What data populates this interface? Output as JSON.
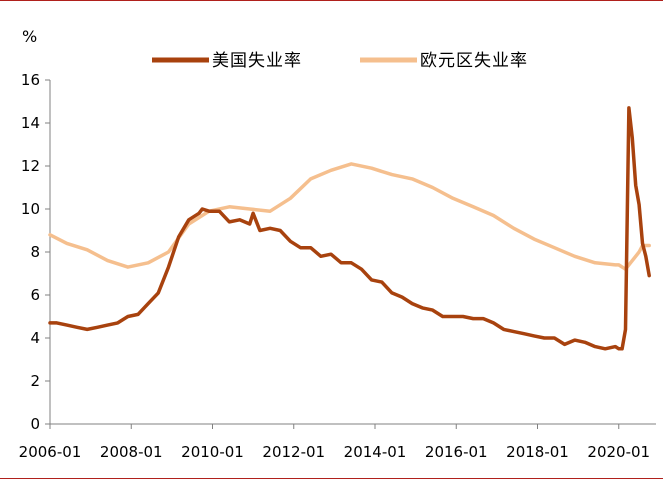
{
  "chart_data": {
    "type": "line",
    "unit_label": "%",
    "ylim": [
      0,
      16
    ],
    "yticks": [
      0,
      2,
      4,
      6,
      8,
      10,
      12,
      14,
      16
    ],
    "xlim": [
      "2006-01",
      "2020-12"
    ],
    "xticks": [
      "2006-01",
      "2008-01",
      "2010-01",
      "2012-01",
      "2014-01",
      "2016-01",
      "2018-01",
      "2020-01"
    ],
    "grid": false,
    "legend_position": "top",
    "series": [
      {
        "name": "美国失业率",
        "color": "#a8420e",
        "points": [
          [
            "2006-01",
            4.7
          ],
          [
            "2006-03",
            4.7
          ],
          [
            "2006-06",
            4.6
          ],
          [
            "2006-09",
            4.5
          ],
          [
            "2006-12",
            4.4
          ],
          [
            "2007-03",
            4.5
          ],
          [
            "2007-06",
            4.6
          ],
          [
            "2007-09",
            4.7
          ],
          [
            "2007-12",
            5.0
          ],
          [
            "2008-03",
            5.1
          ],
          [
            "2008-06",
            5.6
          ],
          [
            "2008-09",
            6.1
          ],
          [
            "2008-12",
            7.3
          ],
          [
            "2009-03",
            8.7
          ],
          [
            "2009-06",
            9.5
          ],
          [
            "2009-09",
            9.8
          ],
          [
            "2009-10",
            10.0
          ],
          [
            "2009-12",
            9.9
          ],
          [
            "2010-03",
            9.9
          ],
          [
            "2010-06",
            9.4
          ],
          [
            "2010-09",
            9.5
          ],
          [
            "2010-12",
            9.3
          ],
          [
            "2011-01",
            9.8
          ],
          [
            "2011-03",
            9.0
          ],
          [
            "2011-06",
            9.1
          ],
          [
            "2011-09",
            9.0
          ],
          [
            "2011-12",
            8.5
          ],
          [
            "2012-03",
            8.2
          ],
          [
            "2012-06",
            8.2
          ],
          [
            "2012-09",
            7.8
          ],
          [
            "2012-12",
            7.9
          ],
          [
            "2013-03",
            7.5
          ],
          [
            "2013-06",
            7.5
          ],
          [
            "2013-09",
            7.2
          ],
          [
            "2013-12",
            6.7
          ],
          [
            "2014-03",
            6.6
          ],
          [
            "2014-06",
            6.1
          ],
          [
            "2014-09",
            5.9
          ],
          [
            "2014-12",
            5.6
          ],
          [
            "2015-03",
            5.4
          ],
          [
            "2015-06",
            5.3
          ],
          [
            "2015-09",
            5.0
          ],
          [
            "2015-12",
            5.0
          ],
          [
            "2016-03",
            5.0
          ],
          [
            "2016-06",
            4.9
          ],
          [
            "2016-09",
            4.9
          ],
          [
            "2016-12",
            4.7
          ],
          [
            "2017-03",
            4.4
          ],
          [
            "2017-06",
            4.3
          ],
          [
            "2017-09",
            4.2
          ],
          [
            "2017-12",
            4.1
          ],
          [
            "2018-03",
            4.0
          ],
          [
            "2018-06",
            4.0
          ],
          [
            "2018-09",
            3.7
          ],
          [
            "2018-12",
            3.9
          ],
          [
            "2019-03",
            3.8
          ],
          [
            "2019-06",
            3.6
          ],
          [
            "2019-09",
            3.5
          ],
          [
            "2019-12",
            3.6
          ],
          [
            "2020-01",
            3.5
          ],
          [
            "2020-02",
            3.5
          ],
          [
            "2020-03",
            4.4
          ],
          [
            "2020-04",
            14.7
          ],
          [
            "2020-05",
            13.3
          ],
          [
            "2020-06",
            11.1
          ],
          [
            "2020-07",
            10.2
          ],
          [
            "2020-08",
            8.4
          ],
          [
            "2020-09",
            7.8
          ],
          [
            "2020-10",
            6.9
          ]
        ]
      },
      {
        "name": "欧元区失业率",
        "color": "#f5bf8e",
        "points": [
          [
            "2006-01",
            8.8
          ],
          [
            "2006-06",
            8.4
          ],
          [
            "2006-12",
            8.1
          ],
          [
            "2007-06",
            7.6
          ],
          [
            "2007-12",
            7.3
          ],
          [
            "2008-06",
            7.5
          ],
          [
            "2008-12",
            8.0
          ],
          [
            "2009-06",
            9.3
          ],
          [
            "2009-12",
            9.9
          ],
          [
            "2010-06",
            10.1
          ],
          [
            "2010-12",
            10.0
          ],
          [
            "2011-06",
            9.9
          ],
          [
            "2011-12",
            10.5
          ],
          [
            "2012-06",
            11.4
          ],
          [
            "2012-12",
            11.8
          ],
          [
            "2013-06",
            12.1
          ],
          [
            "2013-12",
            11.9
          ],
          [
            "2014-06",
            11.6
          ],
          [
            "2014-12",
            11.4
          ],
          [
            "2015-06",
            11.0
          ],
          [
            "2015-12",
            10.5
          ],
          [
            "2016-06",
            10.1
          ],
          [
            "2016-12",
            9.7
          ],
          [
            "2017-06",
            9.1
          ],
          [
            "2017-12",
            8.6
          ],
          [
            "2018-06",
            8.2
          ],
          [
            "2018-12",
            7.8
          ],
          [
            "2019-06",
            7.5
          ],
          [
            "2019-12",
            7.4
          ],
          [
            "2020-01",
            7.4
          ],
          [
            "2020-03",
            7.2
          ],
          [
            "2020-05",
            7.6
          ],
          [
            "2020-07",
            8.0
          ],
          [
            "2020-08",
            8.3
          ],
          [
            "2020-10",
            8.3
          ]
        ]
      }
    ]
  }
}
